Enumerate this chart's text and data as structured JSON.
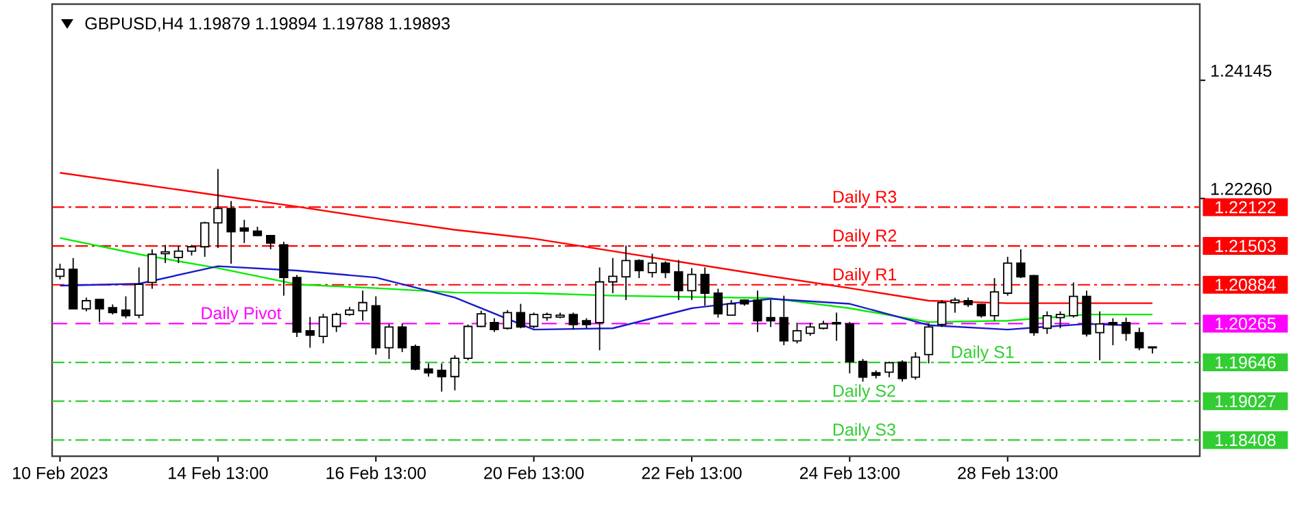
{
  "chart_data": {
    "type": "candlestick",
    "title": "GBPUSD,H4 1.19879 1.19894 1.19788 1.19893",
    "categories": [
      "10 Feb 2023",
      null,
      null,
      null,
      null,
      null,
      null,
      null,
      null,
      null,
      null,
      null,
      "14 Feb 13:00",
      null,
      null,
      null,
      null,
      null,
      null,
      null,
      null,
      null,
      null,
      null,
      "16 Feb 13:00",
      null,
      null,
      null,
      null,
      null,
      null,
      null,
      null,
      null,
      null,
      null,
      "20 Feb 13:00",
      null,
      null,
      null,
      null,
      null,
      null,
      null,
      null,
      null,
      null,
      null,
      "22 Feb 13:00",
      null,
      null,
      null,
      null,
      null,
      null,
      null,
      null,
      null,
      null,
      null,
      "24 Feb 13:00",
      null,
      null,
      null,
      null,
      null,
      null,
      null,
      null,
      null,
      null,
      null,
      "28 Feb 13:00",
      null,
      null,
      null,
      null,
      null,
      null,
      null,
      null,
      null,
      null,
      null
    ],
    "ohlc": [
      [
        1.2102,
        1.2122,
        1.2097,
        1.2113
      ],
      [
        1.2113,
        1.2131,
        1.205,
        1.205
      ],
      [
        1.205,
        1.2068,
        1.2046,
        1.2063
      ],
      [
        1.2065,
        1.2065,
        1.2029,
        1.205
      ],
      [
        1.2052,
        1.2057,
        1.2041,
        1.2044
      ],
      [
        1.2048,
        1.207,
        1.2035,
        1.2039
      ],
      [
        1.204,
        1.2116,
        1.2035,
        1.2089
      ],
      [
        1.2092,
        1.2145,
        1.2082,
        1.2137
      ],
      [
        1.2138,
        1.2152,
        1.2123,
        1.2141
      ],
      [
        1.2132,
        1.215,
        1.2123,
        1.2142
      ],
      [
        1.2142,
        1.2152,
        1.2135,
        1.2149
      ],
      [
        1.2149,
        1.2189,
        1.2133,
        1.2187
      ],
      [
        1.2187,
        1.2273,
        1.2147,
        1.221
      ],
      [
        1.221,
        1.2222,
        1.2122,
        1.2173
      ],
      [
        1.2179,
        1.2192,
        1.2155,
        1.2174
      ],
      [
        1.2174,
        1.2181,
        1.2166,
        1.2167
      ],
      [
        1.2167,
        1.2167,
        1.2145,
        1.2155
      ],
      [
        1.2152,
        1.2157,
        1.2071,
        1.21
      ],
      [
        1.21,
        1.2104,
        1.2005,
        1.2013
      ],
      [
        1.2015,
        1.2037,
        1.1988,
        1.2008
      ],
      [
        1.2006,
        1.2042,
        1.1995,
        1.2037
      ],
      [
        1.2022,
        1.2044,
        1.2013,
        1.2041
      ],
      [
        1.2041,
        1.2053,
        1.2039,
        1.2048
      ],
      [
        1.2047,
        1.2079,
        1.2031,
        1.206
      ],
      [
        1.2055,
        1.207,
        1.1977,
        1.1988
      ],
      [
        1.1988,
        1.2026,
        1.197,
        1.2021
      ],
      [
        1.2021,
        1.2026,
        1.1981,
        1.1988
      ],
      [
        1.199,
        1.1993,
        1.1952,
        1.1954
      ],
      [
        1.1954,
        1.1963,
        1.1942,
        1.1948
      ],
      [
        1.1952,
        1.1963,
        1.1918,
        1.1942
      ],
      [
        1.1942,
        1.1976,
        1.192,
        1.1971
      ],
      [
        1.1971,
        1.2025,
        1.1968,
        1.2022
      ],
      [
        1.2022,
        1.2047,
        1.2021,
        1.2042
      ],
      [
        1.2028,
        1.2035,
        1.2013,
        1.2017
      ],
      [
        1.2019,
        1.2048,
        1.2017,
        1.2044
      ],
      [
        1.2044,
        1.2058,
        1.2019,
        1.2021
      ],
      [
        1.2022,
        1.2044,
        1.2019,
        1.2041
      ],
      [
        1.2036,
        1.2044,
        1.2031,
        1.2041
      ],
      [
        1.2037,
        1.2044,
        1.2035,
        1.204
      ],
      [
        1.2041,
        1.2044,
        1.2017,
        1.2025
      ],
      [
        1.2031,
        1.2035,
        1.2019,
        1.2025
      ],
      [
        1.2028,
        1.2116,
        1.1984,
        1.2093
      ],
      [
        1.2093,
        1.2131,
        1.2075,
        1.2102
      ],
      [
        1.2101,
        1.2151,
        1.2064,
        1.2127
      ],
      [
        1.2127,
        1.2129,
        1.2099,
        1.2111
      ],
      [
        1.2108,
        1.2138,
        1.21,
        1.2123
      ],
      [
        1.2123,
        1.2126,
        1.2099,
        1.2108
      ],
      [
        1.2109,
        1.2128,
        1.2064,
        1.2079
      ],
      [
        1.2079,
        1.2115,
        1.2064,
        1.2105
      ],
      [
        1.2105,
        1.2116,
        1.2055,
        1.2075
      ],
      [
        1.2075,
        1.2082,
        1.2036,
        1.2042
      ],
      [
        1.204,
        1.2064,
        1.2039,
        1.2058
      ],
      [
        1.2064,
        1.2065,
        1.2055,
        1.2058
      ],
      [
        1.2064,
        1.2079,
        1.2013,
        1.2031
      ],
      [
        1.2036,
        1.2064,
        1.2021,
        1.2031
      ],
      [
        1.2036,
        1.2071,
        1.1992,
        1.1999
      ],
      [
        1.1999,
        1.2028,
        1.1995,
        1.2015
      ],
      [
        1.2011,
        1.2028,
        1.2007,
        1.2021
      ],
      [
        1.2019,
        1.2031,
        1.2017,
        1.2026
      ],
      [
        1.2026,
        1.2044,
        1.1999,
        1.2028
      ],
      [
        1.2026,
        1.2029,
        1.1947,
        1.1966
      ],
      [
        1.1966,
        1.197,
        1.1934,
        1.1941
      ],
      [
        1.1948,
        1.1952,
        1.1939,
        1.1944
      ],
      [
        1.1949,
        1.1966,
        1.1941,
        1.1964
      ],
      [
        1.1965,
        1.1968,
        1.1934,
        1.1939
      ],
      [
        1.1941,
        1.1981,
        1.1937,
        1.1973
      ],
      [
        1.1977,
        1.2026,
        1.1963,
        1.2021
      ],
      [
        1.2025,
        1.2064,
        1.2021,
        1.206
      ],
      [
        1.206,
        1.2068,
        1.2044,
        1.2064
      ],
      [
        1.2063,
        1.2068,
        1.2053,
        1.2057
      ],
      [
        1.2057,
        1.2058,
        1.2036,
        1.2039
      ],
      [
        1.2039,
        1.2099,
        1.2031,
        1.2077
      ],
      [
        1.2075,
        1.2133,
        1.2071,
        1.2123
      ],
      [
        1.2123,
        1.2145,
        1.2099,
        1.2101
      ],
      [
        1.2103,
        1.2104,
        1.2007,
        1.2012
      ],
      [
        1.2019,
        1.2046,
        1.201,
        1.2039
      ],
      [
        1.2036,
        1.2046,
        1.2019,
        1.2041
      ],
      [
        1.2039,
        1.2092,
        1.2036,
        1.207
      ],
      [
        1.207,
        1.2079,
        1.2006,
        1.201
      ],
      [
        1.2012,
        1.2046,
        1.1968,
        1.2026
      ],
      [
        1.2028,
        1.2035,
        1.1992,
        1.2025
      ],
      [
        1.2028,
        1.2036,
        1.1999,
        1.2011
      ],
      [
        1.2012,
        1.202,
        1.1984,
        1.1988
      ],
      [
        1.19879,
        1.19894,
        1.19788,
        1.19893
      ]
    ],
    "series": [
      {
        "type": "line",
        "color": "#ff0000",
        "values": [
          1.2267,
          null,
          null,
          null,
          null,
          null,
          1.2249,
          null,
          null,
          null,
          null,
          null,
          1.2231,
          null,
          null,
          null,
          null,
          null,
          1.2213,
          null,
          null,
          null,
          null,
          null,
          1.2194,
          null,
          null,
          null,
          null,
          null,
          1.2176,
          null,
          null,
          null,
          null,
          null,
          1.2162,
          null,
          null,
          null,
          null,
          null,
          1.2142,
          null,
          null,
          null,
          null,
          null,
          1.2122,
          null,
          null,
          null,
          null,
          null,
          1.2102,
          null,
          null,
          null,
          null,
          null,
          1.2083,
          null,
          null,
          null,
          null,
          null,
          1.2063,
          null,
          null,
          null,
          null,
          null,
          1.2059,
          null,
          null,
          null,
          null,
          null,
          1.2059,
          null,
          null,
          null,
          null,
          1.2059
        ]
      },
      {
        "type": "line",
        "color": "#00ee00",
        "values": [
          1.2163,
          null,
          null,
          null,
          null,
          null,
          1.2137,
          null,
          null,
          null,
          null,
          null,
          1.2115,
          null,
          null,
          null,
          null,
          null,
          1.2089,
          null,
          null,
          null,
          null,
          null,
          1.2083,
          null,
          null,
          null,
          null,
          null,
          1.2076,
          null,
          null,
          null,
          null,
          null,
          1.2075,
          null,
          null,
          null,
          null,
          null,
          1.2071,
          null,
          null,
          null,
          null,
          null,
          1.2069,
          null,
          null,
          null,
          null,
          null,
          1.2067,
          null,
          null,
          null,
          null,
          null,
          1.2051,
          null,
          null,
          null,
          null,
          null,
          1.2029,
          null,
          null,
          null,
          null,
          null,
          1.2031,
          null,
          null,
          null,
          null,
          null,
          1.2041,
          null,
          null,
          null,
          null,
          1.2041
        ]
      },
      {
        "type": "line",
        "color": "#1a1acc",
        "values": [
          1.2087,
          null,
          null,
          null,
          null,
          null,
          1.209,
          null,
          null,
          null,
          null,
          null,
          1.2118,
          null,
          null,
          null,
          null,
          null,
          1.2111,
          null,
          null,
          null,
          null,
          null,
          1.21,
          null,
          null,
          null,
          null,
          null,
          1.2068,
          null,
          null,
          null,
          null,
          null,
          1.2017,
          null,
          null,
          null,
          null,
          null,
          1.2019,
          null,
          null,
          null,
          null,
          null,
          1.2051,
          null,
          null,
          null,
          null,
          null,
          1.2066,
          null,
          null,
          null,
          null,
          null,
          1.2058,
          null,
          null,
          null,
          null,
          null,
          1.2024,
          null,
          null,
          null,
          null,
          null,
          1.2017,
          null,
          null,
          null,
          null,
          null,
          1.2026,
          null,
          null,
          1.2024,
          null,
          null
        ]
      }
    ],
    "ref_lines": [
      {
        "axis": "y",
        "value": 1.22122,
        "label": "Daily R3",
        "color": "#ff0000",
        "line_style": "dashdot"
      },
      {
        "axis": "y",
        "value": 1.21503,
        "label": "Daily R2",
        "color": "#ff0000",
        "line_style": "dashdot"
      },
      {
        "axis": "y",
        "value": 1.20884,
        "label": "Daily R1",
        "color": "#ff0000",
        "line_style": "dashdot"
      },
      {
        "axis": "y",
        "value": 1.20265,
        "label": "Daily Pivot",
        "color": "#ff00ff",
        "line_style": "dashed"
      },
      {
        "axis": "y",
        "value": 1.19646,
        "label": "Daily S1",
        "color": "#32cd32",
        "line_style": "dashdot"
      },
      {
        "axis": "y",
        "value": 1.19027,
        "label": "Daily S2",
        "color": "#32cd32",
        "line_style": "dashdot"
      },
      {
        "axis": "y",
        "value": 1.18408,
        "label": "Daily S3",
        "color": "#32cd32",
        "line_style": "dashdot"
      }
    ],
    "ylim": [
      1.1815,
      1.2536
    ],
    "yticks": [
      1.24145,
      {
        "value": 1.2226,
        "label": "1.22260"
      }
    ],
    "y2lim": [
      1.1815,
      1.2536
    ],
    "y2ticks": [
      1.22122,
      1.21503,
      1.20884,
      1.20265,
      1.19646,
      1.19027,
      1.18408
    ]
  }
}
